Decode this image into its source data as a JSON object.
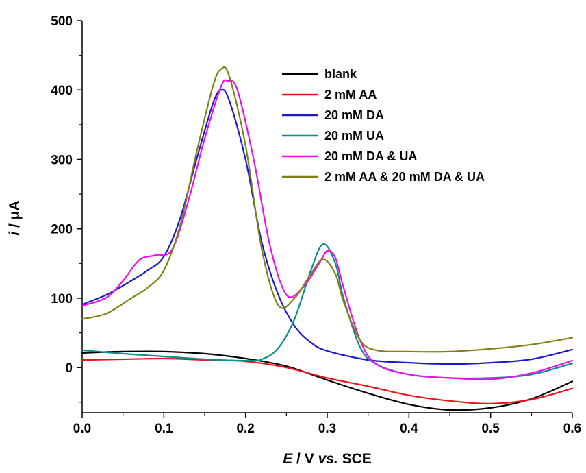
{
  "chart_data": {
    "type": "line",
    "title": "",
    "xlabel": {
      "var": "E",
      "unit": " / V ",
      "note": "vs.",
      "ref": " SCE"
    },
    "ylabel": {
      "var": "i",
      "unit": " / μA"
    },
    "xlim": [
      0.0,
      0.6
    ],
    "ylim": [
      -65,
      500
    ],
    "x_ticks": [
      0.0,
      0.1,
      0.2,
      0.3,
      0.4,
      0.5,
      0.6
    ],
    "x_tick_labels": [
      "0.0",
      "0.1",
      "0.2",
      "0.3",
      "0.4",
      "0.5",
      "0.6"
    ],
    "y_ticks": [
      0,
      100,
      200,
      300,
      400,
      500
    ],
    "y_tick_labels": [
      "0",
      "100",
      "200",
      "300",
      "400",
      "500"
    ],
    "grid": false,
    "legend_position": "top-right",
    "series": [
      {
        "name": "blank",
        "color": "#000000",
        "points": [
          [
            0.0,
            21
          ],
          [
            0.05,
            23
          ],
          [
            0.1,
            23
          ],
          [
            0.15,
            20
          ],
          [
            0.2,
            13
          ],
          [
            0.25,
            2
          ],
          [
            0.3,
            -18
          ],
          [
            0.35,
            -37
          ],
          [
            0.4,
            -53
          ],
          [
            0.45,
            -61
          ],
          [
            0.5,
            -58
          ],
          [
            0.55,
            -45
          ],
          [
            0.6,
            -20
          ]
        ]
      },
      {
        "name": "2 mM AA",
        "color": "#e8141c",
        "points": [
          [
            0.0,
            11
          ],
          [
            0.05,
            12
          ],
          [
            0.1,
            13
          ],
          [
            0.15,
            11
          ],
          [
            0.2,
            9
          ],
          [
            0.25,
            0
          ],
          [
            0.3,
            -15
          ],
          [
            0.35,
            -27
          ],
          [
            0.4,
            -40
          ],
          [
            0.45,
            -48
          ],
          [
            0.5,
            -52
          ],
          [
            0.55,
            -46
          ],
          [
            0.6,
            -30
          ]
        ]
      },
      {
        "name": "20 mM DA",
        "color": "#1a1acf",
        "points": [
          [
            0.0,
            91
          ],
          [
            0.03,
            105
          ],
          [
            0.06,
            125
          ],
          [
            0.08,
            140
          ],
          [
            0.1,
            160
          ],
          [
            0.12,
            215
          ],
          [
            0.14,
            300
          ],
          [
            0.16,
            380
          ],
          [
            0.17,
            400
          ],
          [
            0.18,
            385
          ],
          [
            0.2,
            300
          ],
          [
            0.22,
            180
          ],
          [
            0.24,
            105
          ],
          [
            0.26,
            60
          ],
          [
            0.28,
            36
          ],
          [
            0.3,
            24
          ],
          [
            0.35,
            11
          ],
          [
            0.4,
            7
          ],
          [
            0.45,
            5
          ],
          [
            0.5,
            7
          ],
          [
            0.55,
            12
          ],
          [
            0.6,
            26
          ]
        ]
      },
      {
        "name": "20 mM UA",
        "color": "#0f8a8a",
        "points": [
          [
            0.0,
            25
          ],
          [
            0.05,
            20
          ],
          [
            0.1,
            16
          ],
          [
            0.15,
            12
          ],
          [
            0.2,
            10
          ],
          [
            0.22,
            12
          ],
          [
            0.24,
            28
          ],
          [
            0.26,
            70
          ],
          [
            0.28,
            140
          ],
          [
            0.295,
            178
          ],
          [
            0.31,
            150
          ],
          [
            0.32,
            100
          ],
          [
            0.34,
            30
          ],
          [
            0.36,
            5
          ],
          [
            0.4,
            -10
          ],
          [
            0.45,
            -15
          ],
          [
            0.5,
            -15
          ],
          [
            0.55,
            -10
          ],
          [
            0.6,
            6
          ]
        ]
      },
      {
        "name": "20 mM DA & UA",
        "color": "#f00cf0",
        "points": [
          [
            0.0,
            89
          ],
          [
            0.03,
            101
          ],
          [
            0.05,
            125
          ],
          [
            0.07,
            155
          ],
          [
            0.09,
            162
          ],
          [
            0.11,
            170
          ],
          [
            0.13,
            240
          ],
          [
            0.15,
            330
          ],
          [
            0.17,
            405
          ],
          [
            0.178,
            413
          ],
          [
            0.19,
            400
          ],
          [
            0.21,
            300
          ],
          [
            0.23,
            175
          ],
          [
            0.25,
            105
          ],
          [
            0.27,
            115
          ],
          [
            0.29,
            150
          ],
          [
            0.3,
            168
          ],
          [
            0.31,
            158
          ],
          [
            0.32,
            115
          ],
          [
            0.34,
            40
          ],
          [
            0.36,
            5
          ],
          [
            0.4,
            -10
          ],
          [
            0.45,
            -15
          ],
          [
            0.5,
            -17
          ],
          [
            0.55,
            -8
          ],
          [
            0.6,
            10
          ]
        ]
      },
      {
        "name": "2 mM AA & 20 mM DA & UA",
        "color": "#808014",
        "points": [
          [
            0.0,
            70
          ],
          [
            0.03,
            78
          ],
          [
            0.06,
            100
          ],
          [
            0.08,
            115
          ],
          [
            0.1,
            140
          ],
          [
            0.12,
            205
          ],
          [
            0.14,
            310
          ],
          [
            0.16,
            405
          ],
          [
            0.17,
            430
          ],
          [
            0.18,
            420
          ],
          [
            0.2,
            320
          ],
          [
            0.22,
            170
          ],
          [
            0.24,
            90
          ],
          [
            0.26,
            100
          ],
          [
            0.28,
            135
          ],
          [
            0.295,
            156
          ],
          [
            0.31,
            135
          ],
          [
            0.32,
            95
          ],
          [
            0.34,
            40
          ],
          [
            0.36,
            25
          ],
          [
            0.4,
            23
          ],
          [
            0.45,
            23
          ],
          [
            0.5,
            27
          ],
          [
            0.55,
            33
          ],
          [
            0.6,
            43
          ]
        ]
      }
    ]
  }
}
